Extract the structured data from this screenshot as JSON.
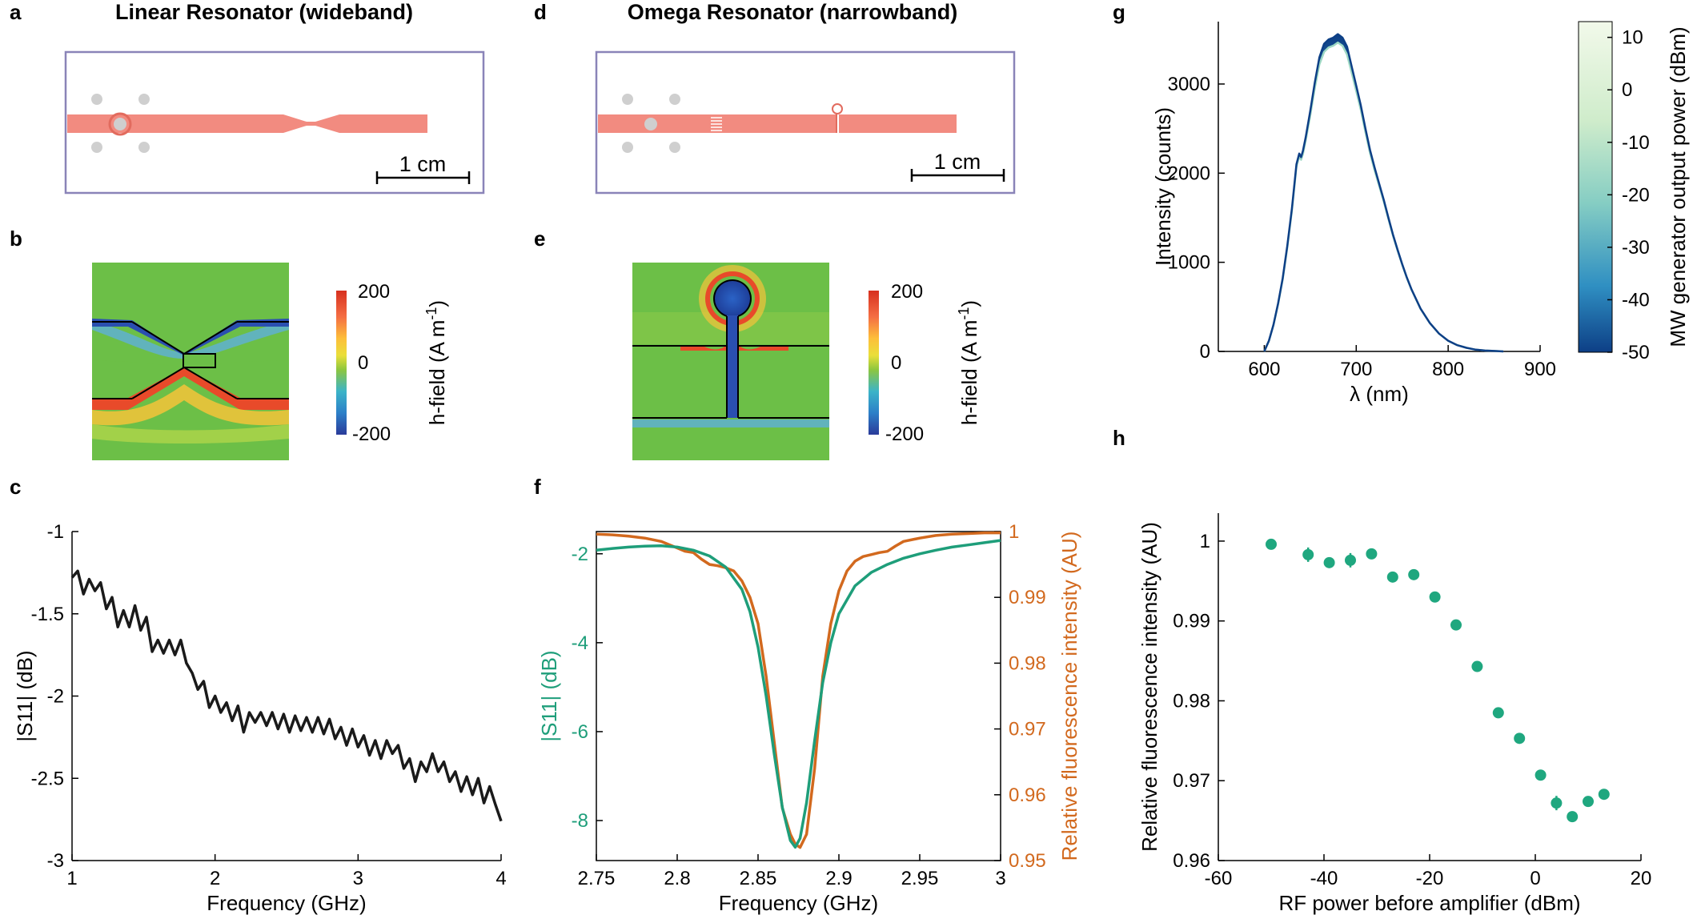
{
  "colors": {
    "trace": "#1a1a1a",
    "s11": "#1e9e7a",
    "fluor": "#d2691e",
    "strip": "#f28b80",
    "frame": "#8a84b8",
    "pin": "#cfcfcf",
    "dot": "#1fa77f",
    "field_bg": "#6cbf47"
  },
  "panels": {
    "a": {
      "label": "a",
      "title": "Linear Resonator (wideband)",
      "scale": "1 cm"
    },
    "b": {
      "label": "b",
      "cbar_label": "h-field (A m",
      "cbar_sup": "-1",
      "cbar_close": ")",
      "cbar_ticks": [
        "200",
        "0",
        "-200"
      ]
    },
    "c": {
      "label": "c"
    },
    "d": {
      "label": "d",
      "title": "Omega Resonator (narrowband)",
      "scale": "1 cm"
    },
    "e": {
      "label": "e",
      "cbar_label": "h-field (A m",
      "cbar_sup": "-1",
      "cbar_close": ")",
      "cbar_ticks": [
        "200",
        "0",
        "-200"
      ]
    },
    "f": {
      "label": "f"
    },
    "g": {
      "label": "g"
    },
    "h": {
      "label": "h"
    }
  },
  "chart_data": [
    {
      "id": "c",
      "type": "line",
      "xlabel": "Frequency (GHz)",
      "ylabel": "|S11| (dB)",
      "xlim": [
        1,
        4
      ],
      "ylim": [
        -3,
        -1
      ],
      "xticks": [
        1,
        2,
        3,
        4
      ],
      "yticks": [
        -3,
        -2.5,
        -2,
        -1.5,
        -1
      ],
      "series": [
        {
          "color": "#1a1a1a",
          "x": [
            1.0,
            1.04,
            1.08,
            1.12,
            1.16,
            1.2,
            1.24,
            1.28,
            1.32,
            1.36,
            1.4,
            1.44,
            1.48,
            1.52,
            1.56,
            1.6,
            1.64,
            1.68,
            1.72,
            1.76,
            1.8,
            1.84,
            1.88,
            1.92,
            1.96,
            2.0,
            2.04,
            2.08,
            2.12,
            2.16,
            2.2,
            2.24,
            2.28,
            2.32,
            2.36,
            2.4,
            2.44,
            2.48,
            2.52,
            2.56,
            2.6,
            2.64,
            2.68,
            2.72,
            2.76,
            2.8,
            2.84,
            2.88,
            2.92,
            2.96,
            3.0,
            3.04,
            3.08,
            3.12,
            3.16,
            3.2,
            3.24,
            3.28,
            3.32,
            3.36,
            3.4,
            3.44,
            3.48,
            3.52,
            3.56,
            3.6,
            3.64,
            3.68,
            3.72,
            3.76,
            3.8,
            3.84,
            3.88,
            3.92,
            3.96,
            4.0
          ],
          "y": [
            -1.28,
            -1.24,
            -1.38,
            -1.29,
            -1.36,
            -1.31,
            -1.47,
            -1.4,
            -1.58,
            -1.48,
            -1.58,
            -1.45,
            -1.6,
            -1.52,
            -1.73,
            -1.66,
            -1.74,
            -1.66,
            -1.75,
            -1.66,
            -1.8,
            -1.86,
            -1.96,
            -1.91,
            -2.07,
            -2.0,
            -2.1,
            -2.04,
            -2.15,
            -2.06,
            -2.22,
            -2.1,
            -2.16,
            -2.1,
            -2.18,
            -2.1,
            -2.2,
            -2.11,
            -2.22,
            -2.12,
            -2.21,
            -2.13,
            -2.22,
            -2.13,
            -2.23,
            -2.14,
            -2.26,
            -2.19,
            -2.3,
            -2.2,
            -2.31,
            -2.24,
            -2.36,
            -2.27,
            -2.38,
            -2.27,
            -2.35,
            -2.3,
            -2.44,
            -2.38,
            -2.52,
            -2.4,
            -2.46,
            -2.35,
            -2.46,
            -2.4,
            -2.52,
            -2.46,
            -2.58,
            -2.49,
            -2.6,
            -2.5,
            -2.65,
            -2.55,
            -2.66,
            -2.76
          ]
        }
      ]
    },
    {
      "id": "f",
      "type": "line",
      "xlabel": "Frequency (GHz)",
      "ylabel": "|S11| (dB)",
      "ylabel_right": "Relative fluorescence intensity (AU)",
      "xlim": [
        2.75,
        3
      ],
      "ylim": [
        -8.9,
        -1.5
      ],
      "ylim_right": [
        0.95,
        1.0
      ],
      "xticks": [
        2.75,
        2.8,
        2.85,
        2.9,
        2.95,
        3
      ],
      "yticks": [
        -8,
        -6,
        -4,
        -2
      ],
      "yticks_right": [
        0.95,
        0.96,
        0.97,
        0.98,
        0.99,
        1
      ],
      "series": [
        {
          "axis": "left",
          "color": "#1e9e7a",
          "x": [
            2.75,
            2.76,
            2.77,
            2.78,
            2.79,
            2.8,
            2.81,
            2.82,
            2.83,
            2.84,
            2.845,
            2.85,
            2.855,
            2.86,
            2.865,
            2.87,
            2.873,
            2.876,
            2.88,
            2.885,
            2.89,
            2.895,
            2.9,
            2.91,
            2.92,
            2.93,
            2.94,
            2.95,
            2.96,
            2.97,
            2.98,
            2.99,
            3.0
          ],
          "y": [
            -1.92,
            -1.88,
            -1.85,
            -1.83,
            -1.82,
            -1.85,
            -1.92,
            -2.05,
            -2.3,
            -2.8,
            -3.3,
            -4.1,
            -5.2,
            -6.5,
            -7.7,
            -8.45,
            -8.6,
            -8.4,
            -7.6,
            -6.2,
            -4.9,
            -4.0,
            -3.35,
            -2.72,
            -2.42,
            -2.24,
            -2.1,
            -2.0,
            -1.92,
            -1.85,
            -1.8,
            -1.75,
            -1.7
          ]
        },
        {
          "axis": "right",
          "color": "#d2691e",
          "x": [
            2.75,
            2.76,
            2.77,
            2.78,
            2.79,
            2.8,
            2.805,
            2.81,
            2.815,
            2.82,
            2.825,
            2.83,
            2.835,
            2.84,
            2.845,
            2.85,
            2.855,
            2.86,
            2.865,
            2.87,
            2.873,
            2.876,
            2.88,
            2.885,
            2.89,
            2.895,
            2.9,
            2.905,
            2.91,
            2.915,
            2.92,
            2.925,
            2.93,
            2.935,
            2.94,
            2.95,
            2.96,
            2.97,
            2.98,
            2.99,
            3.0
          ],
          "y": [
            0.9996,
            0.9995,
            0.9993,
            0.999,
            0.9985,
            0.9975,
            0.997,
            0.9968,
            0.9958,
            0.995,
            0.9948,
            0.9945,
            0.994,
            0.9925,
            0.99,
            0.986,
            0.978,
            0.968,
            0.958,
            0.954,
            0.9525,
            0.952,
            0.954,
            0.964,
            0.978,
            0.986,
            0.991,
            0.994,
            0.9955,
            0.9962,
            0.9965,
            0.9968,
            0.997,
            0.9978,
            0.9985,
            0.999,
            0.9994,
            0.9996,
            0.9997,
            0.9998,
            0.9998
          ]
        }
      ]
    },
    {
      "id": "g",
      "type": "line",
      "xlabel": "λ (nm)",
      "ylabel": "Intensity (counts)",
      "xlim": [
        550,
        900
      ],
      "ylim": [
        0,
        3700
      ],
      "xticks": [
        600,
        700,
        800,
        900
      ],
      "yticks": [
        0,
        1000,
        2000,
        3000
      ],
      "colorbar": {
        "label": "MW generator output power (dBm)",
        "ticks": [
          10,
          0,
          -10,
          -20,
          -30,
          -40,
          -50
        ],
        "range": [
          -50,
          13
        ]
      },
      "x": [
        600,
        605,
        610,
        615,
        620,
        625,
        630,
        635,
        638,
        640,
        642,
        645,
        650,
        655,
        660,
        665,
        670,
        675,
        680,
        685,
        690,
        695,
        700,
        705,
        710,
        715,
        720,
        725,
        730,
        735,
        740,
        745,
        750,
        755,
        760,
        770,
        780,
        790,
        800,
        810,
        820,
        830,
        840,
        850,
        860
      ],
      "series_top": [
        0,
        120,
        300,
        540,
        820,
        1180,
        1600,
        2100,
        2220,
        2180,
        2250,
        2400,
        2700,
        3020,
        3300,
        3450,
        3500,
        3520,
        3560,
        3520,
        3420,
        3200,
        2980,
        2760,
        2500,
        2260,
        2060,
        1880,
        1700,
        1500,
        1310,
        1140,
        980,
        830,
        700,
        480,
        320,
        200,
        120,
        70,
        40,
        20,
        10,
        5,
        0
      ],
      "series_bottom": [
        0,
        118,
        295,
        530,
        805,
        1160,
        1575,
        2070,
        2190,
        2150,
        2215,
        2365,
        2650,
        2960,
        3220,
        3360,
        3410,
        3430,
        3465,
        3430,
        3330,
        3130,
        2920,
        2710,
        2460,
        2225,
        2030,
        1855,
        1680,
        1485,
        1298,
        1130,
        972,
        824,
        695,
        476,
        318,
        199,
        119,
        70,
        40,
        20,
        10,
        5,
        0
      ]
    },
    {
      "id": "h",
      "type": "scatter",
      "xlabel": "RF power before amplifier (dBm)",
      "ylabel": "Relative fluorescence intensity (AU)",
      "xlim": [
        -60,
        20
      ],
      "ylim": [
        0.96,
        1.0035
      ],
      "xticks": [
        -60,
        -40,
        -20,
        0,
        20
      ],
      "yticks": [
        0.96,
        0.97,
        0.98,
        0.99,
        1
      ],
      "x": [
        -50,
        -43,
        -39,
        -35,
        -31,
        -27,
        -23,
        -19,
        -15,
        -11,
        -7,
        -3,
        1,
        4,
        7,
        10,
        13
      ],
      "y": [
        0.9996,
        0.9983,
        0.9973,
        0.9976,
        0.9984,
        0.9955,
        0.9958,
        0.993,
        0.9895,
        0.9843,
        0.9785,
        0.9753,
        0.9707,
        0.9672,
        0.9655,
        0.9674,
        0.9683
      ],
      "err": [
        0,
        0.0009,
        0,
        0.0009,
        0,
        0,
        0,
        0,
        0,
        0,
        0,
        0,
        0,
        0.0009,
        0,
        0,
        0
      ]
    }
  ]
}
